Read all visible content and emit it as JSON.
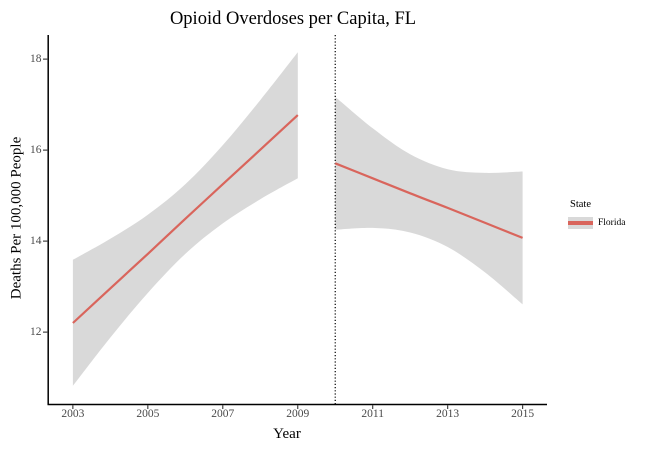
{
  "chart_data": {
    "type": "line",
    "title": "Opioid Overdoses per Capita, FL",
    "xlabel": "Year",
    "ylabel": "Deaths Per 100,000 People",
    "x_tick_labels": [
      "2003",
      "2005",
      "2007",
      "2009",
      "2011",
      "2013",
      "2015"
    ],
    "x_tick_values": [
      2003,
      2005,
      2007,
      2009,
      2011,
      2013,
      2015
    ],
    "y_tick_labels": [
      "12",
      "14",
      "16",
      "18"
    ],
    "y_tick_values": [
      12,
      14,
      16,
      18
    ],
    "x_range": [
      2002.35,
      2015.65
    ],
    "y_range": [
      10.42,
      18.53
    ],
    "grid": "off",
    "legend_position": "right",
    "vline": {
      "x": 2010,
      "style": "dotted",
      "color": "#000000"
    },
    "series": [
      {
        "name": "Florida",
        "color": "#D9655C",
        "band_color": "#D9D9D9",
        "segments": [
          {
            "x": [
              2003,
              2004,
              2005,
              2006,
              2007,
              2008,
              2009
            ],
            "fit": [
              12.2,
              12.96,
              13.72,
              14.49,
              15.25,
              16.01,
              16.77
            ],
            "upper": [
              13.59,
              14.05,
              14.58,
              15.25,
              16.11,
              17.1,
              18.15
            ],
            "lower": [
              10.82,
              11.88,
              12.86,
              13.72,
              14.39,
              14.92,
              15.38
            ]
          },
          {
            "x": [
              2010,
              2011,
              2012,
              2013,
              2014,
              2015
            ],
            "fit": [
              15.71,
              15.38,
              15.05,
              14.73,
              14.4,
              14.07
            ],
            "upper": [
              17.17,
              16.48,
              15.91,
              15.58,
              15.5,
              15.53
            ],
            "lower": [
              14.25,
              14.29,
              14.19,
              13.87,
              13.31,
              12.61
            ]
          }
        ]
      }
    ]
  },
  "legend": {
    "title": "State",
    "items": [
      {
        "label": "Florida"
      }
    ]
  },
  "colors": {
    "axis": "#000000",
    "tick": "#333333",
    "tick_label": "#4a4a4a"
  }
}
